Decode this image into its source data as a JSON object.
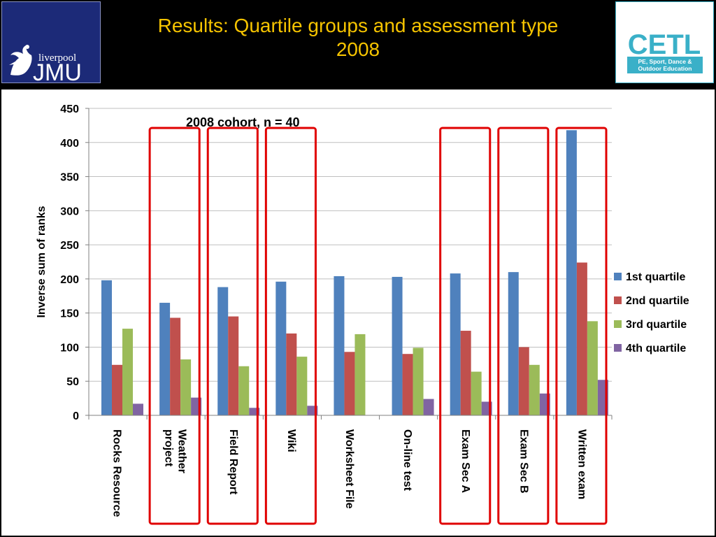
{
  "slide": {
    "title_line1": "Results: Quartile groups and assessment type",
    "title_line2": "2008",
    "title_color": "#f6c400",
    "background": "#000000"
  },
  "logos": {
    "left": {
      "sub": "liverpool",
      "main": "JMU",
      "icon": "liver-bird-icon",
      "bg": "#1c2a78"
    },
    "right": {
      "main": "CETL",
      "sub1": "PE, Sport, Dance &",
      "sub2": "Outdoor Education",
      "color": "#3ab0c8"
    }
  },
  "chart_data": {
    "type": "bar",
    "annotation": "2008 cohort, n = 40",
    "ylabel": "Inverse sum of ranks",
    "xlabel": "",
    "ylim": [
      0,
      450
    ],
    "yticks": [
      0,
      50,
      100,
      150,
      200,
      250,
      300,
      350,
      400,
      450
    ],
    "grid": true,
    "legend_position": "right",
    "categories": [
      [
        "Rocks Resource"
      ],
      [
        "Weather",
        "project"
      ],
      [
        "Field Report"
      ],
      [
        "Wiki"
      ],
      [
        "Worksheet File"
      ],
      [
        "On-line test"
      ],
      [
        "Exam Sec A"
      ],
      [
        "Exam Sec B"
      ],
      [
        "Written exam"
      ]
    ],
    "series": [
      {
        "name": "1st quartile",
        "color": "#4f81bd",
        "values": [
          198,
          165,
          188,
          196,
          204,
          203,
          208,
          210,
          418
        ]
      },
      {
        "name": "2nd quartile",
        "color": "#c0504d",
        "values": [
          74,
          143,
          145,
          120,
          93,
          90,
          124,
          100,
          224
        ]
      },
      {
        "name": "3rd quartile",
        "color": "#9bbb59",
        "values": [
          127,
          82,
          72,
          86,
          119,
          99,
          64,
          74,
          138
        ]
      },
      {
        "name": "4th quartile",
        "color": "#8064a2",
        "values": [
          17,
          26,
          11,
          14,
          0,
          24,
          20,
          32,
          52
        ]
      }
    ],
    "highlighted_categories": [
      1,
      2,
      3,
      6,
      7,
      8
    ],
    "highlight_color": "#e00000"
  }
}
